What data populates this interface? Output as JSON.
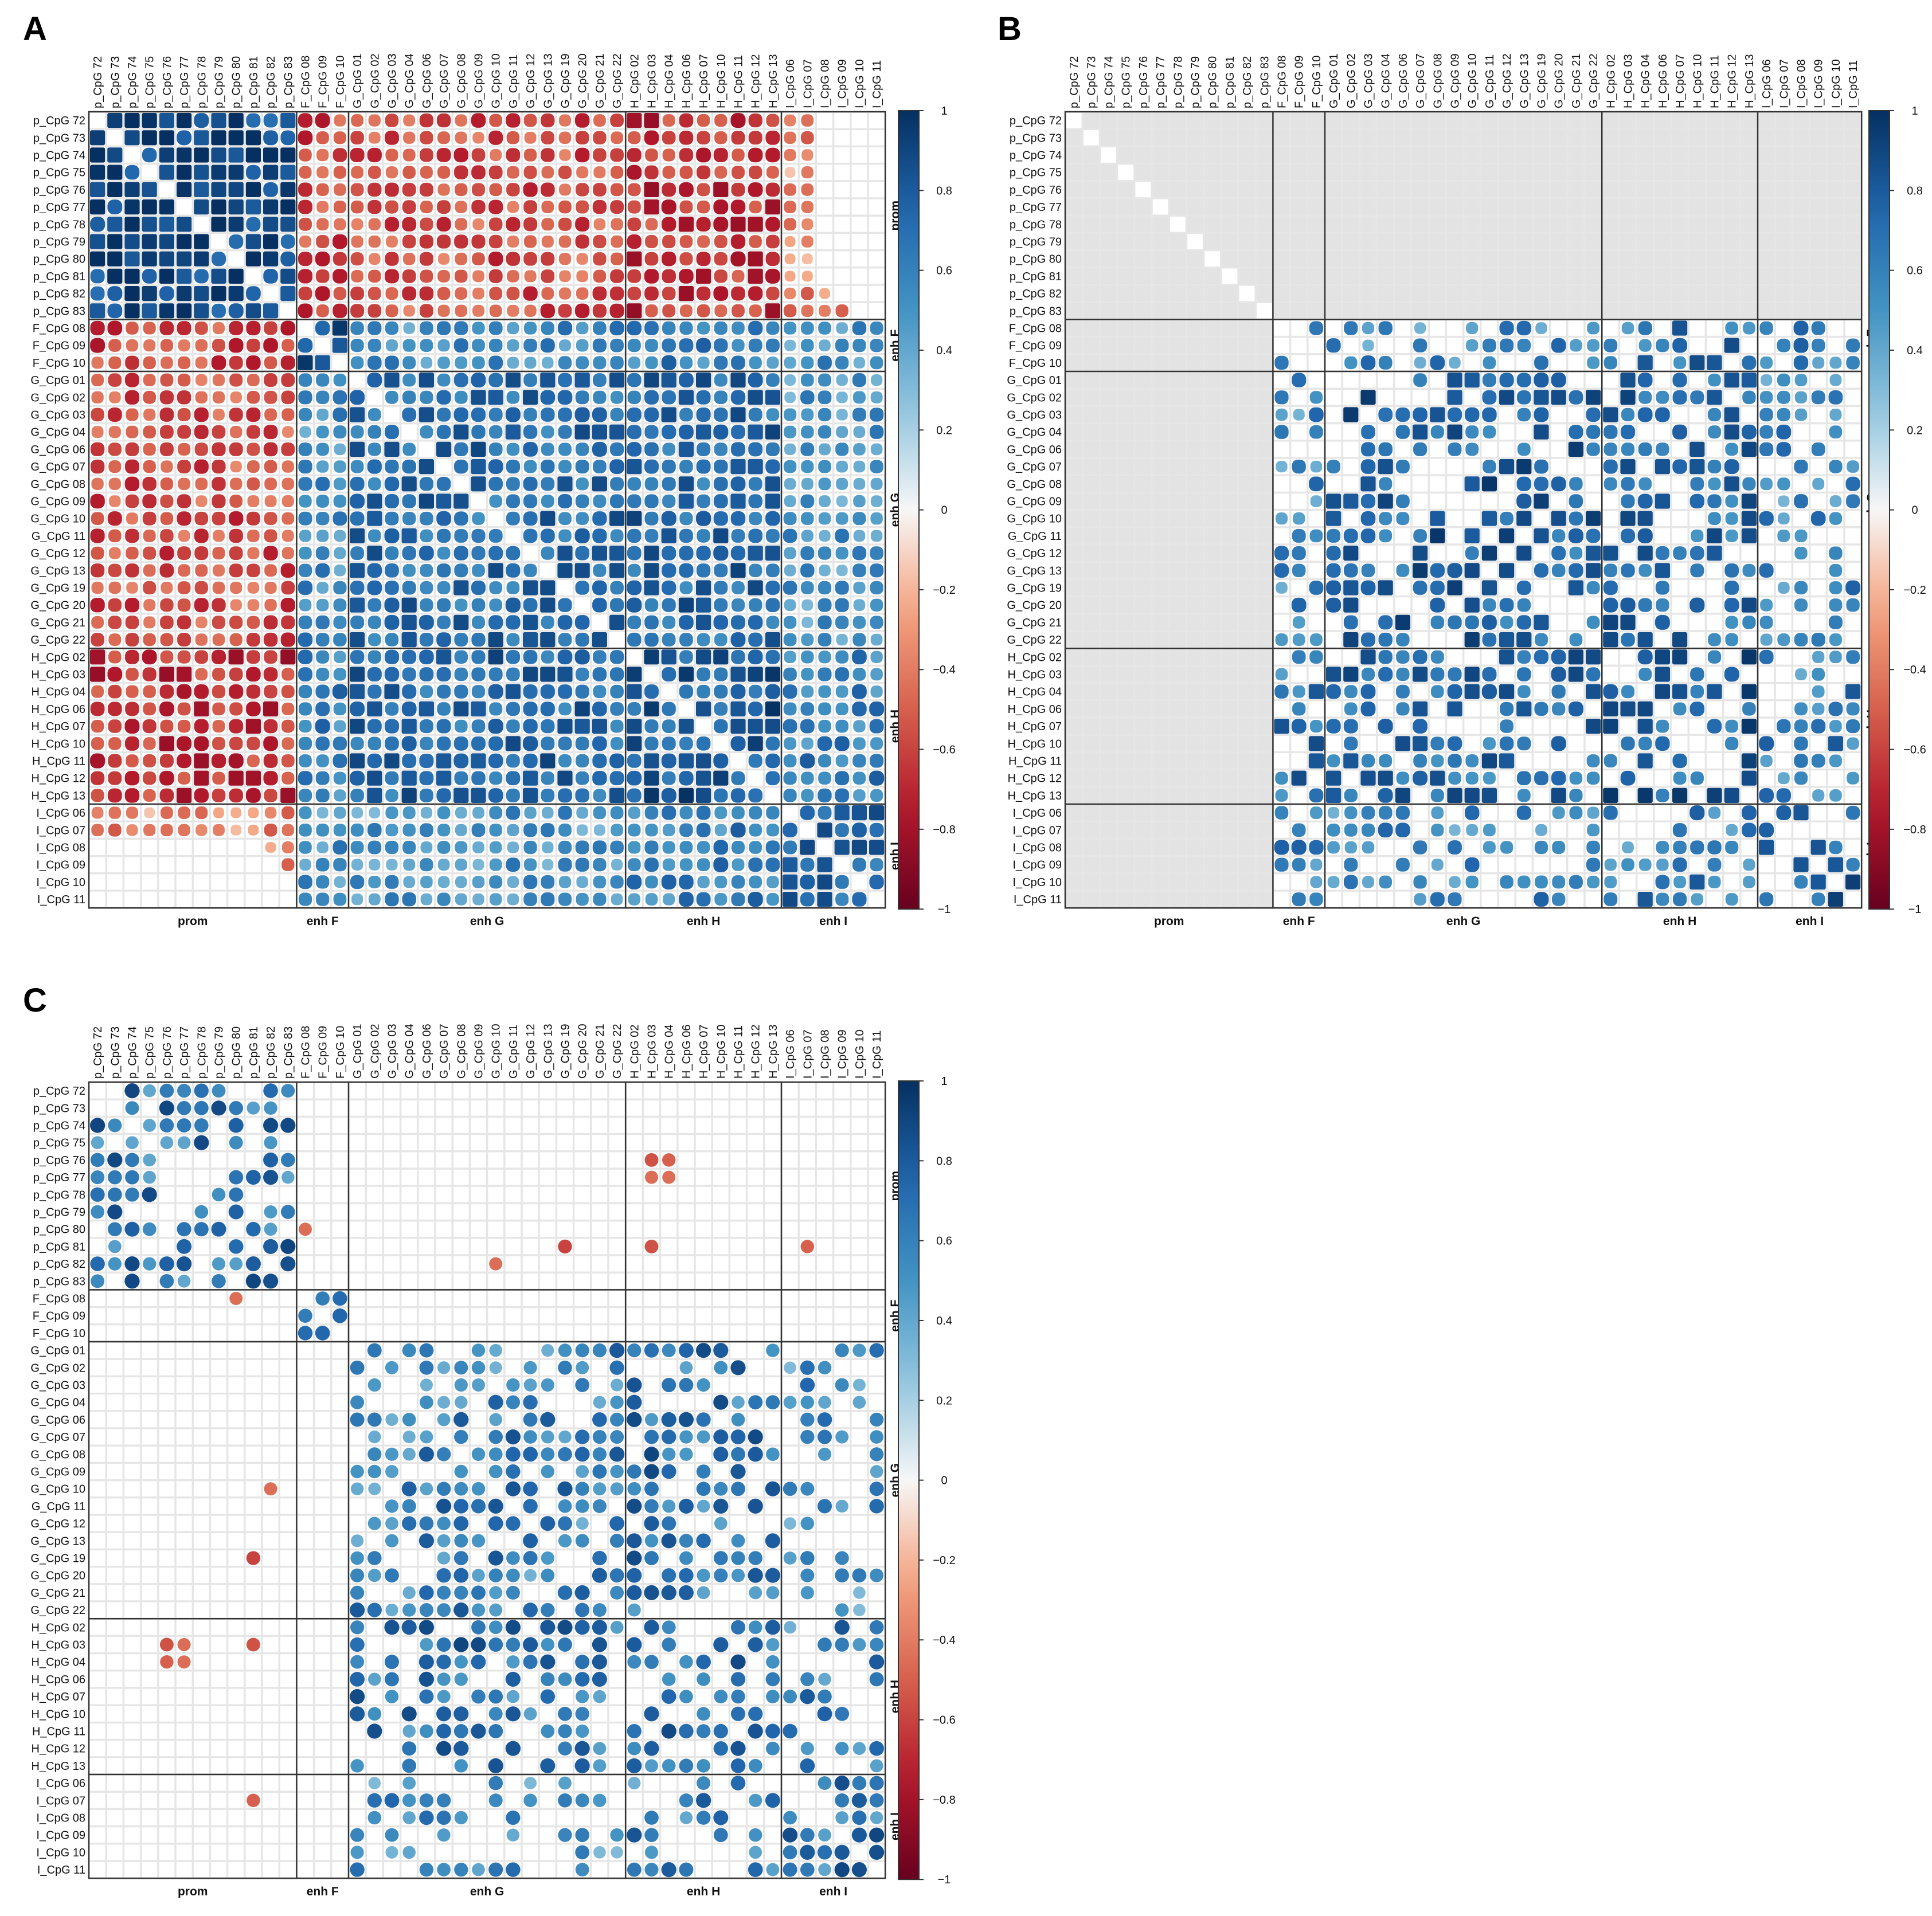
{
  "figure": {
    "panels": [
      "A",
      "B",
      "C"
    ],
    "row_labels": [
      "p_CpG 72",
      "p_CpG 73",
      "p_CpG 74",
      "p_CpG 75",
      "p_CpG 76",
      "p_CpG 77",
      "p_CpG 78",
      "p_CpG 79",
      "p_CpG 80",
      "p_CpG 81",
      "p_CpG 82",
      "p_CpG 83",
      "F_CpG 08",
      "F_CpG 09",
      "F_CpG 10",
      "G_CpG 01",
      "G_CpG 02",
      "G_CpG 03",
      "G_CpG 04",
      "G_CpG 06",
      "G_CpG 07",
      "G_CpG 08",
      "G_CpG 09",
      "G_CpG 10",
      "G_CpG 11",
      "G_CpG 12",
      "G_CpG 13",
      "G_CpG 19",
      "G_CpG 20",
      "G_CpG 21",
      "G_CpG 22",
      "H_CpG 02",
      "H_CpG 03",
      "H_CpG 04",
      "H_CpG 06",
      "H_CpG 07",
      "H_CpG 10",
      "H_CpG 11",
      "H_CpG 12",
      "H_CpG 13",
      "I_CpG 06",
      "I_CpG 07",
      "I_CpG 08",
      "I_CpG 09",
      "I_CpG 10",
      "I_CpG 11"
    ],
    "groups": [
      {
        "label": "prom",
        "start": 0,
        "count": 12
      },
      {
        "label": "enh F",
        "start": 12,
        "count": 3
      },
      {
        "label": "enh G",
        "start": 15,
        "count": 16
      },
      {
        "label": "enh H",
        "start": 31,
        "count": 9
      },
      {
        "label": "enh I",
        "start": 40,
        "count": 6
      }
    ],
    "colorbar": {
      "ticks": [
        "1",
        "0.8",
        "0.6",
        "0.4",
        "0.2",
        "0",
        "−0.2",
        "−0.4",
        "−0.6",
        "−0.8",
        "−1"
      ],
      "range": [
        -1,
        1
      ]
    },
    "colors": {
      "neg_strong": "#67001f",
      "neg_mid": "#d6604d",
      "neg_light": "#f4a582",
      "neutral": "#f7f7f7",
      "pos_light": "#92c5de",
      "pos_mid": "#4393c3",
      "pos_strong": "#053061",
      "grid": "#e6e6e6",
      "masked": "#e3e3e3",
      "frame": "#333333"
    }
  },
  "chart_data": [
    {
      "panel": "A",
      "type": "heatmap",
      "style": "rounded-square cells, size and colour encode correlation",
      "description": "Full correlation matrix among 46 CpG sites",
      "blocks": {
        "prom-prom": 0.9,
        "prom-F": -0.6,
        "prom-G": -0.55,
        "prom-H": -0.65,
        "prom-I": -0.35,
        "F-F": 0.85,
        "F-G": 0.55,
        "F-H": 0.6,
        "F-I": 0.5,
        "G-G": 0.7,
        "G-H": 0.72,
        "G-I": 0.5,
        "H-H": 0.8,
        "H-I": 0.6,
        "I-I": 0.75
      },
      "value_range": [
        -1,
        1
      ]
    },
    {
      "panel": "B",
      "type": "heatmap",
      "style": "promoter rows/columns masked (grey)",
      "description": "Correlation matrix with promoter sites masked; enhancer blocks shown as significant cells",
      "blocks": {
        "F-F": 0.85,
        "F-G": 0.55,
        "F-H": 0.65,
        "F-I": 0.6,
        "G-G": 0.75,
        "G-H": 0.7,
        "G-I": 0.55,
        "H-H": 0.75,
        "H-I": 0.6,
        "I-I": 0.8
      },
      "value_range": [
        -1,
        1
      ]
    },
    {
      "panel": "C",
      "type": "heatmap",
      "style": "circles, only significant correlations shown",
      "description": "Sparse correlation matrix; promoter block positive, scattered negative prom-enhancer cells",
      "blocks": {
        "prom-prom": 0.65,
        "F-F": 0.75,
        "G-G": 0.6,
        "G-H": 0.65,
        "G-I": 0.55,
        "H-H": 0.7,
        "H-I": 0.6,
        "I-I": 0.65
      },
      "negative_cells": [
        [
          "p_CpG 76",
          "H_CpG 03",
          -0.55
        ],
        [
          "p_CpG 76",
          "H_CpG 04",
          -0.5
        ],
        [
          "p_CpG 77",
          "H_CpG 03",
          -0.45
        ],
        [
          "p_CpG 77",
          "H_CpG 04",
          -0.45
        ],
        [
          "p_CpG 80",
          "F_CpG 08",
          -0.45
        ],
        [
          "p_CpG 81",
          "G_CpG 19",
          -0.6
        ],
        [
          "p_CpG 81",
          "H_CpG 03",
          -0.55
        ],
        [
          "p_CpG 81",
          "I_CpG 07",
          -0.5
        ],
        [
          "p_CpG 82",
          "G_CpG 10",
          -0.45
        ]
      ],
      "value_range": [
        -1,
        1
      ]
    }
  ]
}
